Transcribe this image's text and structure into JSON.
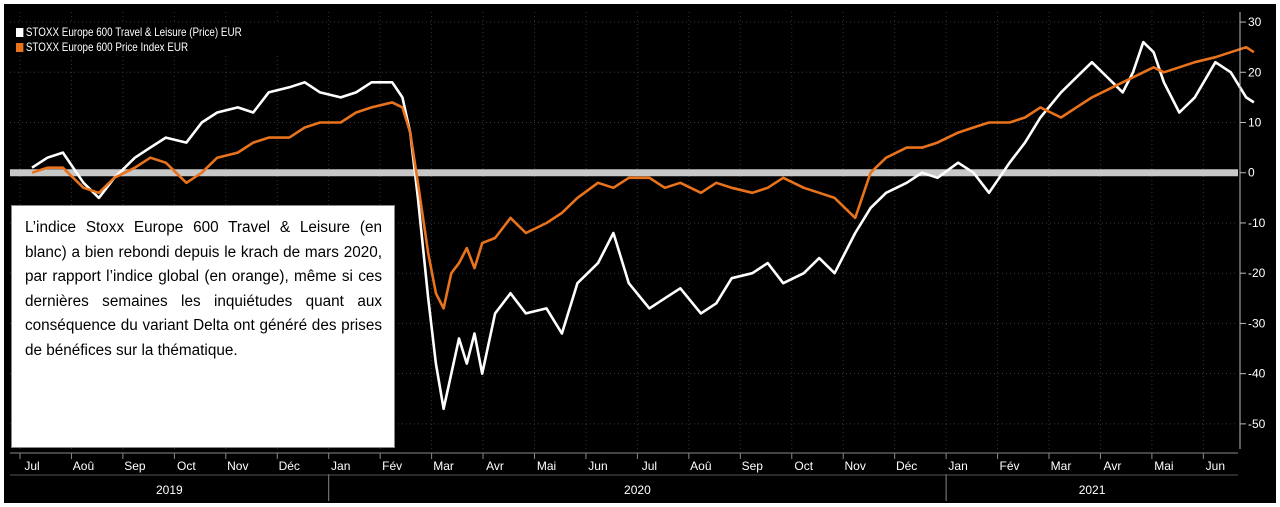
{
  "legend": [
    {
      "label": "STOXX Europe 600 Travel & Leisure (Price) EUR",
      "color": "#ffffff"
    },
    {
      "label": "STOXX Europe 600 Price Index EUR",
      "color": "#e8731c"
    }
  ],
  "annotation": "L’indice Stoxx Europe 600 Travel & Leisure (en blanc) a bien rebondi depuis le krach de mars 2020, par rapport l’indice global (en orange), même si ces dernières semaines les inquiétudes quant aux conséquence du variant Delta ont généré des prises de bénéfices sur la thématique.",
  "chart_data": {
    "type": "line",
    "ylim": [
      -55,
      32
    ],
    "yticks": [
      30,
      20,
      10,
      0,
      -10,
      -20,
      -30,
      -40,
      -50
    ],
    "month_labels": [
      "Jul",
      "Aoû",
      "Sep",
      "Oct",
      "Nov",
      "Déc",
      "Jan",
      "Fév",
      "Mar",
      "Avr",
      "Mai",
      "Jun",
      "Jul",
      "Aoû",
      "Sep",
      "Oct",
      "Nov",
      "Déc",
      "Jan",
      "Fév",
      "Mar",
      "Avr",
      "Mai",
      "Jun"
    ],
    "year_labels": [
      "2019",
      "2020",
      "2021"
    ],
    "zero_line": 0,
    "series": [
      {
        "name": "STOXX Europe 600 Travel & Leisure (Price) EUR",
        "color": "#ffffff",
        "x": [
          0,
          0.3,
          0.6,
          1,
          1.3,
          1.6,
          2,
          2.3,
          2.6,
          3,
          3.3,
          3.6,
          4,
          4.3,
          4.6,
          5,
          5.3,
          5.6,
          6,
          6.3,
          6.6,
          7,
          7.2,
          7.35,
          7.5,
          7.7,
          7.85,
          8,
          8.15,
          8.3,
          8.45,
          8.6,
          8.75,
          9,
          9.3,
          9.6,
          10,
          10.3,
          10.6,
          11,
          11.3,
          11.6,
          12,
          12.3,
          12.6,
          13,
          13.3,
          13.6,
          14,
          14.3,
          14.6,
          15,
          15.3,
          15.6,
          16,
          16.3,
          16.6,
          17,
          17.3,
          17.6,
          18,
          18.3,
          18.6,
          19,
          19.3,
          19.6,
          20,
          20.3,
          20.6,
          21,
          21.2,
          21.4,
          21.6,
          21.8,
          22,
          22.3,
          22.6,
          23,
          23.3,
          23.6,
          23.75
        ],
        "y": [
          1,
          3,
          4,
          -2,
          -5,
          -1,
          3,
          5,
          7,
          6,
          10,
          12,
          13,
          12,
          16,
          17,
          18,
          16,
          15,
          16,
          18,
          18,
          15,
          8,
          -5,
          -25,
          -38,
          -47,
          -40,
          -33,
          -38,
          -32,
          -40,
          -28,
          -24,
          -28,
          -27,
          -32,
          -22,
          -18,
          -12,
          -22,
          -27,
          -25,
          -23,
          -28,
          -26,
          -21,
          -20,
          -18,
          -22,
          -20,
          -17,
          -20,
          -12,
          -7,
          -4,
          -2,
          0,
          -1,
          2,
          0,
          -4,
          2,
          6,
          11,
          16,
          19,
          22,
          18,
          16,
          20,
          26,
          24,
          18,
          12,
          15,
          22,
          20,
          15,
          14
        ]
      },
      {
        "name": "STOXX Europe 600 Price Index EUR",
        "color": "#e8731c",
        "x": [
          0,
          0.3,
          0.6,
          1,
          1.3,
          1.6,
          2,
          2.3,
          2.6,
          3,
          3.3,
          3.6,
          4,
          4.3,
          4.6,
          5,
          5.3,
          5.6,
          6,
          6.3,
          6.6,
          7,
          7.2,
          7.35,
          7.5,
          7.7,
          7.85,
          8,
          8.15,
          8.3,
          8.45,
          8.6,
          8.75,
          9,
          9.3,
          9.6,
          10,
          10.3,
          10.6,
          11,
          11.3,
          11.6,
          12,
          12.3,
          12.6,
          13,
          13.3,
          13.6,
          14,
          14.3,
          14.6,
          15,
          15.3,
          15.6,
          16,
          16.3,
          16.6,
          17,
          17.3,
          17.6,
          18,
          18.3,
          18.6,
          19,
          19.3,
          19.6,
          20,
          20.3,
          20.6,
          21,
          21.2,
          21.4,
          21.6,
          21.8,
          22,
          22.3,
          22.6,
          23,
          23.3,
          23.6,
          23.75
        ],
        "y": [
          0,
          1,
          1,
          -3,
          -4,
          -1,
          1,
          3,
          2,
          -2,
          0,
          3,
          4,
          6,
          7,
          7,
          9,
          10,
          10,
          12,
          13,
          14,
          13,
          8,
          -2,
          -16,
          -24,
          -27,
          -20,
          -18,
          -15,
          -19,
          -14,
          -13,
          -9,
          -12,
          -10,
          -8,
          -5,
          -2,
          -3,
          -1,
          -1,
          -3,
          -2,
          -4,
          -2,
          -3,
          -4,
          -3,
          -1,
          -3,
          -4,
          -5,
          -9,
          0,
          3,
          5,
          5,
          6,
          8,
          9,
          10,
          10,
          11,
          13,
          11,
          13,
          15,
          17,
          18,
          19,
          20,
          21,
          20,
          21,
          22,
          23,
          24,
          25,
          24
        ]
      }
    ]
  }
}
